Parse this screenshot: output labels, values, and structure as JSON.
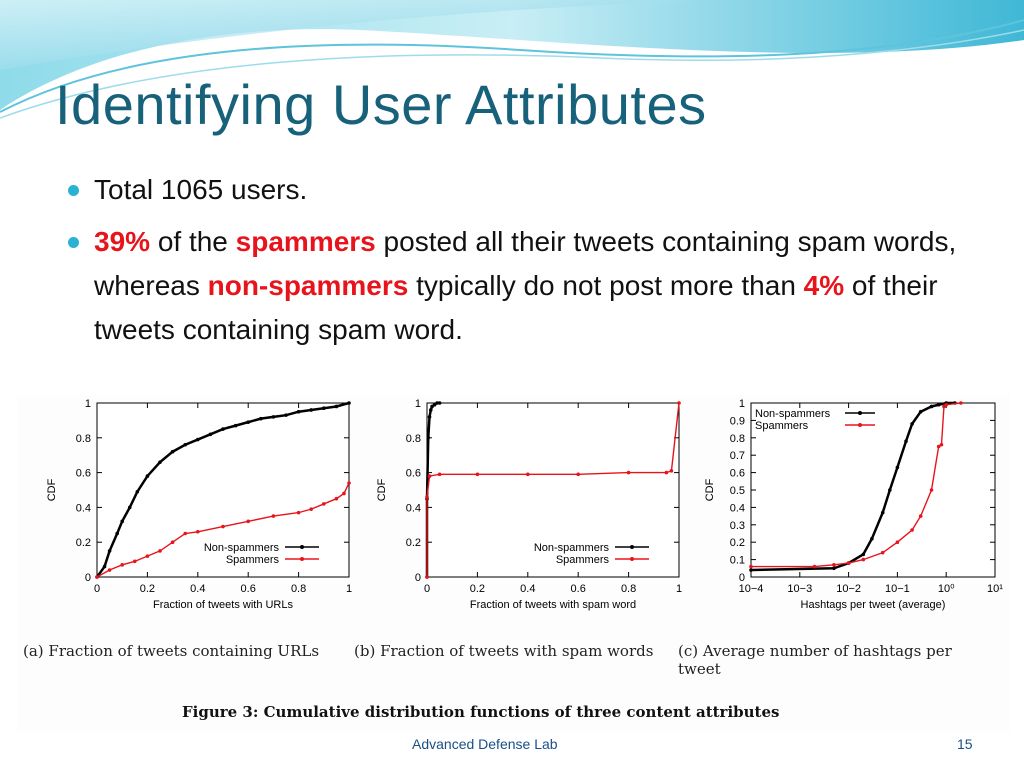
{
  "slide": {
    "title": "Identifying User Attributes",
    "bullets": [
      {
        "parts": [
          {
            "text": "Total 1065 users.",
            "style": "normal"
          }
        ]
      },
      {
        "parts": [
          {
            "text": "39%",
            "style": "red"
          },
          {
            "text": " of the ",
            "style": "normal"
          },
          {
            "text": "spammers",
            "style": "red"
          },
          {
            "text": " posted all their tweets containing spam words, whereas ",
            "style": "normal"
          },
          {
            "text": "non-spammers",
            "style": "red"
          },
          {
            "text": " typically do not post more than ",
            "style": "normal"
          },
          {
            "text": "4%",
            "style": "red"
          },
          {
            "text": " of their tweets containing spam word.",
            "style": "normal"
          }
        ]
      }
    ],
    "footer": {
      "lab": "Advanced Defense Lab",
      "page": "15"
    },
    "colors": {
      "title": "#17617a",
      "highlight": "#e8141b",
      "bullet": "#2ab1d3",
      "footer": "#1a4f86"
    }
  },
  "figure": {
    "caption": "Figure 3:  Cumulative distribution functions of three content attributes",
    "subcaptions": [
      "(a) Fraction of tweets containing URLs",
      "(b) Fraction of tweets with spam words",
      "(c)  Average   number   of   hashtags   per",
      "tweet"
    ]
  },
  "chart_data": [
    {
      "type": "line",
      "xlabel": "Fraction of tweets with URLs",
      "ylabel": "CDF",
      "xlim": [
        0,
        1
      ],
      "ylim": [
        0,
        1
      ],
      "xticks": [
        "0",
        "0.2",
        "0.4",
        "0.6",
        "0.8",
        "1"
      ],
      "yticks": [
        "0",
        "0.2",
        "0.4",
        "0.6",
        "0.8",
        "1"
      ],
      "legend_position": "bottom-right",
      "series": [
        {
          "name": "Non-spammers",
          "color": "#000000",
          "x": [
            0,
            0.03,
            0.05,
            0.08,
            0.1,
            0.13,
            0.16,
            0.2,
            0.25,
            0.3,
            0.35,
            0.4,
            0.45,
            0.5,
            0.55,
            0.6,
            0.65,
            0.7,
            0.75,
            0.8,
            0.85,
            0.9,
            0.95,
            1.0
          ],
          "y": [
            0,
            0.06,
            0.15,
            0.25,
            0.32,
            0.4,
            0.49,
            0.58,
            0.66,
            0.72,
            0.76,
            0.79,
            0.82,
            0.85,
            0.87,
            0.89,
            0.91,
            0.92,
            0.93,
            0.95,
            0.96,
            0.97,
            0.98,
            1.0
          ]
        },
        {
          "name": "Spammers",
          "color": "#e8141b",
          "x": [
            0,
            0.05,
            0.1,
            0.15,
            0.2,
            0.25,
            0.3,
            0.35,
            0.4,
            0.5,
            0.6,
            0.7,
            0.8,
            0.85,
            0.9,
            0.95,
            0.98,
            1.0
          ],
          "y": [
            0,
            0.04,
            0.07,
            0.09,
            0.12,
            0.15,
            0.2,
            0.25,
            0.26,
            0.29,
            0.32,
            0.35,
            0.37,
            0.39,
            0.42,
            0.45,
            0.48,
            0.54
          ]
        }
      ]
    },
    {
      "type": "line",
      "xlabel": "Fraction of tweets with spam word",
      "ylabel": "CDF",
      "xlim": [
        0,
        1
      ],
      "ylim": [
        0,
        1
      ],
      "xticks": [
        "0",
        "0.2",
        "0.4",
        "0.6",
        "0.8",
        "1"
      ],
      "yticks": [
        "0",
        "0.2",
        "0.4",
        "0.6",
        "0.8",
        "1"
      ],
      "legend_position": "bottom-right",
      "series": [
        {
          "name": "Non-spammers",
          "color": "#000000",
          "x": [
            0,
            0,
            0.005,
            0.01,
            0.015,
            0.02,
            0.03,
            0.04,
            0.05
          ],
          "y": [
            0,
            0.45,
            0.8,
            0.92,
            0.96,
            0.98,
            0.99,
            1.0,
            1.0
          ]
        },
        {
          "name": "Spammers",
          "color": "#e8141b",
          "x": [
            0,
            0,
            0.01,
            0.05,
            0.2,
            0.4,
            0.6,
            0.8,
            0.95,
            0.97,
            1.0
          ],
          "y": [
            0,
            0.46,
            0.58,
            0.59,
            0.59,
            0.59,
            0.59,
            0.6,
            0.6,
            0.61,
            1.0
          ]
        }
      ]
    },
    {
      "type": "line",
      "xlabel": "Hashtags per tweet (average)",
      "ylabel": "CDF",
      "xscale": "log",
      "xlim": [
        0.0001,
        10
      ],
      "ylim": [
        0,
        1
      ],
      "xticks": [
        "10−4",
        "10−3",
        "10−2",
        "10−1",
        "10⁰",
        "10¹"
      ],
      "yticks": [
        "0",
        "0.1",
        "0.2",
        "0.3",
        "0.4",
        "0.5",
        "0.6",
        "0.7",
        "0.8",
        "0.9",
        "1"
      ],
      "legend_position": "top-left",
      "series": [
        {
          "name": "Non-spammers",
          "color": "#000000",
          "x": [
            0.0001,
            0.005,
            0.01,
            0.02,
            0.03,
            0.05,
            0.07,
            0.1,
            0.15,
            0.2,
            0.3,
            0.5,
            0.7,
            1.0,
            1.5
          ],
          "y": [
            0.04,
            0.05,
            0.08,
            0.13,
            0.22,
            0.37,
            0.5,
            0.63,
            0.78,
            0.88,
            0.95,
            0.98,
            0.99,
            1.0,
            1.0
          ]
        },
        {
          "name": "Spammers",
          "color": "#e8141b",
          "x": [
            0.0001,
            0.002,
            0.005,
            0.01,
            0.02,
            0.05,
            0.1,
            0.2,
            0.3,
            0.5,
            0.7,
            0.8,
            0.9,
            1.0,
            2.0
          ],
          "y": [
            0.06,
            0.06,
            0.07,
            0.08,
            0.1,
            0.14,
            0.2,
            0.27,
            0.35,
            0.5,
            0.75,
            0.76,
            0.98,
            0.99,
            1.0
          ]
        }
      ]
    }
  ]
}
